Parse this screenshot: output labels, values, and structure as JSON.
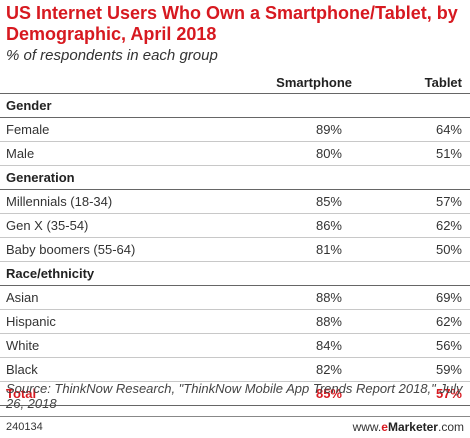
{
  "chart_data": {
    "type": "table",
    "title": "US Internet Users Who Own a Smartphone/Tablet, by Demographic, April 2018",
    "subtitle": "% of respondents in each group",
    "columns": [
      "",
      "Smartphone",
      "Tablet"
    ],
    "groups": [
      {
        "name": "Gender",
        "rows": [
          {
            "label": "Female",
            "smartphone": "89%",
            "tablet": "64%"
          },
          {
            "label": "Male",
            "smartphone": "80%",
            "tablet": "51%"
          }
        ]
      },
      {
        "name": "Generation",
        "rows": [
          {
            "label": "Millennials (18-34)",
            "smartphone": "85%",
            "tablet": "57%"
          },
          {
            "label": "Gen X (35-54)",
            "smartphone": "86%",
            "tablet": "62%"
          },
          {
            "label": "Baby boomers (55-64)",
            "smartphone": "81%",
            "tablet": "50%"
          }
        ]
      },
      {
        "name": "Race/ethnicity",
        "rows": [
          {
            "label": "Asian",
            "smartphone": "88%",
            "tablet": "69%"
          },
          {
            "label": "Hispanic",
            "smartphone": "88%",
            "tablet": "62%"
          },
          {
            "label": "White",
            "smartphone": "84%",
            "tablet": "56%"
          },
          {
            "label": "Black",
            "smartphone": "82%",
            "tablet": "59%"
          }
        ]
      }
    ],
    "total": {
      "label": "Total",
      "smartphone": "85%",
      "tablet": "57%"
    }
  },
  "source": "Source: ThinkNow Research, \"ThinkNow Mobile App Trends Report 2018,\" July 26, 2018",
  "footer": {
    "id": "240134",
    "brand_prefix": "www.",
    "brand_e": "e",
    "brand_marketer": "Marketer",
    "brand_suffix": ".com"
  },
  "colors": {
    "accent": "#d71920",
    "text": "#333333"
  }
}
